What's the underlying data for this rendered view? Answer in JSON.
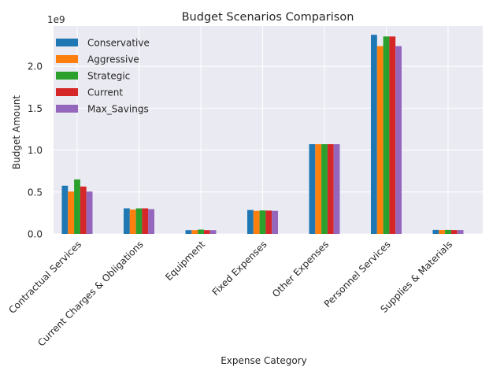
{
  "chart_data": {
    "type": "bar",
    "title": "Budget Scenarios Comparison",
    "xlabel": "Expense Category",
    "ylabel": "Budget Amount",
    "y_offset_text": "1e9",
    "y_scale": 1000000000,
    "ylim": [
      0,
      2480000000
    ],
    "grid": true,
    "legend_position": "top-left",
    "categories": [
      "Contractual Services",
      "Current Charges & Obligations",
      "Equipment",
      "Fixed Expenses",
      "Other Expenses",
      "Personnel Services",
      "Supplies & Materials"
    ],
    "y_ticks": [
      0,
      500000000,
      1000000000,
      1500000000,
      2000000000
    ],
    "y_tick_labels": [
      "0.0",
      "0.5",
      "1.0",
      "1.5",
      "2.0"
    ],
    "series": [
      {
        "name": "Conservative",
        "color": "#1f77b4",
        "values": [
          575000000,
          305000000,
          45000000,
          285000000,
          1070000000,
          2375000000,
          48000000
        ]
      },
      {
        "name": "Aggressive",
        "color": "#ff7f0e",
        "values": [
          505000000,
          290000000,
          45000000,
          275000000,
          1070000000,
          2240000000,
          46000000
        ]
      },
      {
        "name": "Strategic",
        "color": "#2ca02c",
        "values": [
          650000000,
          305000000,
          52000000,
          280000000,
          1070000000,
          2355000000,
          48000000
        ]
      },
      {
        "name": "Current",
        "color": "#d62728",
        "values": [
          565000000,
          305000000,
          45000000,
          278000000,
          1070000000,
          2355000000,
          46000000
        ]
      },
      {
        "name": "Max_Savings",
        "color": "#9467bd",
        "values": [
          505000000,
          295000000,
          45000000,
          275000000,
          1070000000,
          2240000000,
          46000000
        ]
      }
    ]
  }
}
